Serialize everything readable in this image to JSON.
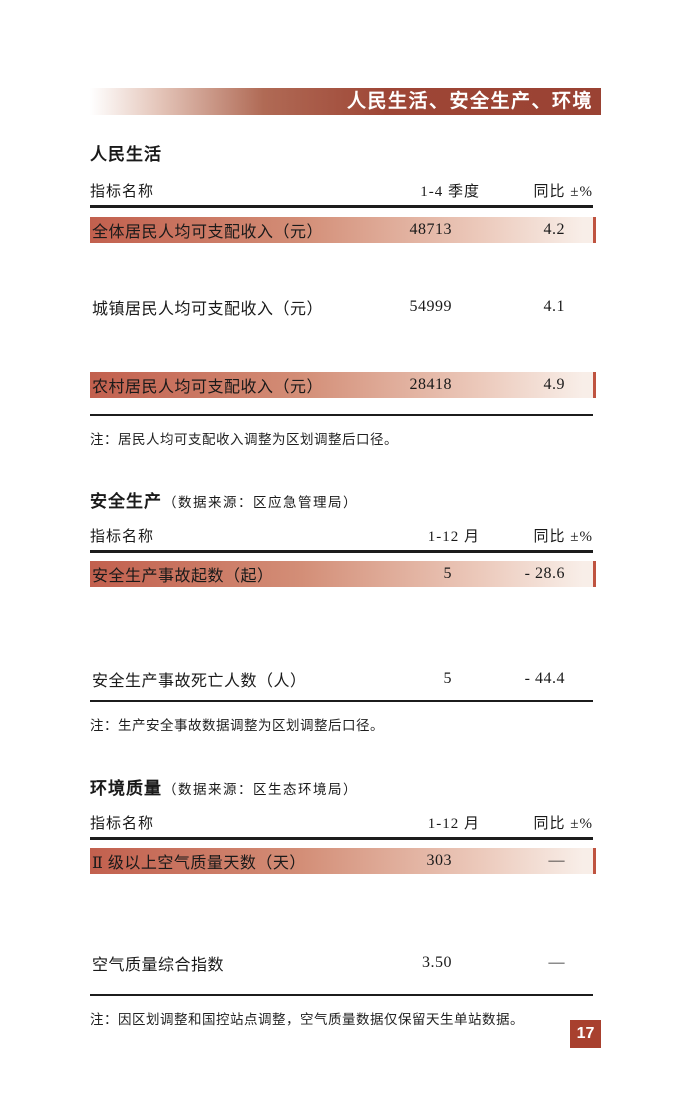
{
  "banner": {
    "title": "人民生活、安全生产、环境"
  },
  "colors": {
    "brand_red": "#9e4636",
    "highlight_left": "#c2604e",
    "highlight_right": "#f8eee8",
    "tick_red": "#bf5340",
    "page_badge": "#a8402e"
  },
  "sections": [
    {
      "title": "人民生活",
      "source": "",
      "columns": {
        "name": "指标名称",
        "period": "1-4 季度",
        "yoy": "同比 ±%"
      },
      "rows": [
        {
          "name": "全体居民人均可支配收入（元）",
          "value": "48713",
          "yoy": "4.2"
        },
        {
          "name": "城镇居民人均可支配收入（元）",
          "value": "54999",
          "yoy": "4.1"
        },
        {
          "name": "农村居民人均可支配收入（元）",
          "value": "28418",
          "yoy": "4.9"
        }
      ],
      "note": "注：居民人均可支配收入调整为区划调整后口径。"
    },
    {
      "title": "安全生产",
      "source": "（数据来源：区应急管理局）",
      "columns": {
        "name": "指标名称",
        "period": "1-12 月",
        "yoy": "同比 ±%"
      },
      "rows": [
        {
          "name": "安全生产事故起数（起）",
          "value": "5",
          "yoy": "- 28.6"
        },
        {
          "name": "安全生产事故死亡人数（人）",
          "value": "5",
          "yoy": "- 44.4"
        }
      ],
      "note": "注：生产安全事故数据调整为区划调整后口径。"
    },
    {
      "title": "环境质量",
      "source": "（数据来源：区生态环境局）",
      "columns": {
        "name": "指标名称",
        "period": "1-12 月",
        "yoy": "同比 ±%"
      },
      "rows": [
        {
          "name": "Ⅱ 级以上空气质量天数（天）",
          "value": "303",
          "yoy": "—"
        },
        {
          "name": "空气质量综合指数",
          "value": "3.50",
          "yoy": "—"
        }
      ],
      "note": "注：因区划调整和国控站点调整，空气质量数据仅保留天生单站数据。"
    }
  ],
  "page_number": "17"
}
